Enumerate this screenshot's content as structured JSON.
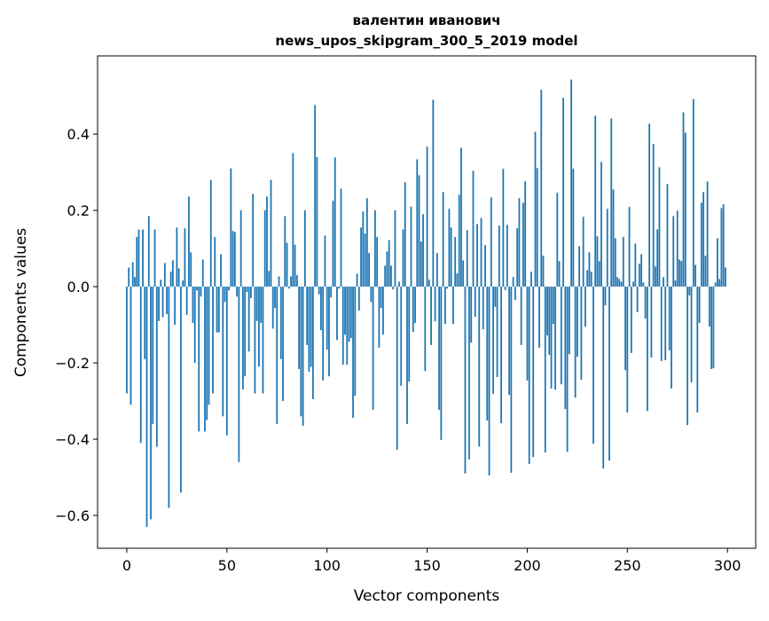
{
  "chart_data": {
    "type": "bar",
    "title": [
      "валентин иванович",
      "news_upos_skipgram_300_5_2019 model"
    ],
    "xlabel": "Vector components",
    "ylabel": "Components values",
    "xlim": [
      -14.6,
      314.1
    ],
    "ylim": [
      -0.686,
      0.605
    ],
    "xticks": [
      0,
      50,
      100,
      150,
      200,
      250,
      300
    ],
    "xtick_labels": [
      "0",
      "50",
      "100",
      "150",
      "200",
      "250",
      "300"
    ],
    "yticks": [
      -0.6,
      -0.4,
      -0.2,
      0.0,
      0.2,
      0.4
    ],
    "ytick_labels": [
      "−0.6",
      "−0.4",
      "−0.2",
      "0.0",
      "0.2",
      "0.4"
    ],
    "grid": false,
    "bar_color": "#1f77b4",
    "values": [
      -0.28,
      0.05,
      -0.31,
      0.064,
      0.025,
      0.13,
      0.15,
      -0.41,
      0.15,
      -0.19,
      -0.63,
      0.185,
      -0.61,
      -0.36,
      0.15,
      -0.42,
      -0.09,
      0.018,
      -0.08,
      0.062,
      -0.072,
      -0.58,
      0.039,
      0.069,
      -0.1,
      0.155,
      0.048,
      -0.54,
      0.016,
      0.153,
      -0.074,
      0.236,
      0.09,
      -0.095,
      -0.2,
      -0.01,
      -0.38,
      -0.026,
      0.071,
      -0.38,
      -0.35,
      -0.31,
      0.28,
      -0.28,
      0.13,
      -0.12,
      -0.12,
      0.085,
      -0.34,
      -0.04,
      -0.39,
      -0.01,
      0.31,
      0.146,
      0.143,
      -0.026,
      -0.46,
      0.2,
      -0.27,
      -0.235,
      -0.014,
      -0.17,
      -0.03,
      0.243,
      -0.28,
      -0.09,
      -0.21,
      -0.095,
      -0.28,
      0.2,
      0.236,
      0.041,
      0.28,
      -0.11,
      -0.056,
      -0.36,
      0.027,
      -0.19,
      -0.3,
      0.185,
      0.115,
      -0.005,
      0.027,
      0.35,
      0.11,
      0.03,
      -0.216,
      -0.34,
      -0.365,
      0.2,
      -0.153,
      -0.223,
      -0.21,
      -0.295,
      0.476,
      0.34,
      -0.02,
      -0.114,
      -0.246,
      0.134,
      -0.165,
      -0.235,
      -0.028,
      0.225,
      0.339,
      -0.14,
      -0.005,
      0.257,
      -0.205,
      -0.126,
      -0.205,
      -0.144,
      -0.135,
      -0.344,
      -0.286,
      0.034,
      -0.063,
      0.155,
      0.197,
      0.139,
      0.232,
      0.088,
      -0.04,
      -0.323,
      0.2,
      0.13,
      -0.16,
      -0.056,
      -0.126,
      0.055,
      0.092,
      0.122,
      0.055,
      -0.007,
      0.2,
      -0.428,
      0.013,
      -0.26,
      0.15,
      0.274,
      -0.36,
      -0.249,
      0.21,
      -0.119,
      -0.095,
      0.334,
      0.292,
      0.118,
      0.19,
      -0.221,
      0.367,
      0.018,
      -0.153,
      0.49,
      -0.091,
      0.088,
      -0.323,
      -0.402,
      0.248,
      -0.098,
      -0.005,
      0.204,
      0.155,
      -0.098,
      0.13,
      0.034,
      0.241,
      0.364,
      0.069,
      -0.49,
      0.148,
      -0.453,
      -0.147,
      0.304,
      -0.079,
      0.164,
      -0.419,
      0.18,
      -0.112,
      0.109,
      -0.351,
      -0.495,
      0.234,
      -0.281,
      -0.053,
      -0.237,
      0.16,
      -0.358,
      0.309,
      -0.009,
      0.162,
      -0.284,
      -0.488,
      0.025,
      -0.035,
      0.153,
      0.232,
      -0.153,
      0.22,
      0.276,
      -0.246,
      -0.465,
      0.039,
      -0.447,
      0.406,
      0.311,
      -0.16,
      0.516,
      0.081,
      -0.435,
      -0.128,
      -0.179,
      -0.267,
      -0.098,
      -0.27,
      0.246,
      0.067,
      -0.256,
      0.495,
      -0.321,
      -0.433,
      -0.177,
      0.543,
      0.309,
      -0.291,
      -0.184,
      0.106,
      -0.244,
      0.183,
      -0.105,
      0.043,
      0.09,
      0.039,
      -0.412,
      0.448,
      0.132,
      0.067,
      0.327,
      -0.477,
      -0.049,
      0.204,
      -0.456,
      0.441,
      0.255,
      0.127,
      0.025,
      0.02,
      0.013,
      0.13,
      -0.219,
      -0.33,
      0.209,
      -0.174,
      0.013,
      0.113,
      -0.067,
      0.06,
      0.085,
      0.011,
      -0.084,
      -0.326,
      0.427,
      -0.186,
      0.374,
      0.053,
      0.15,
      0.313,
      -0.195,
      0.025,
      -0.193,
      0.269,
      -0.167,
      -0.267,
      0.185,
      0.016,
      0.199,
      0.071,
      0.067,
      0.457,
      0.404,
      -0.363,
      -0.023,
      -0.251,
      0.492,
      0.057,
      -0.33,
      -0.095,
      0.22,
      0.248,
      0.081,
      0.276,
      -0.105,
      -0.216,
      -0.214,
      0.011,
      0.127,
      0.02,
      0.206,
      0.216,
      0.05
    ]
  }
}
